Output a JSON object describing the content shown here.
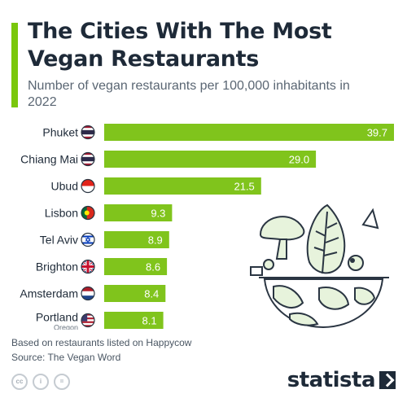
{
  "header": {
    "title": "The Cities With The Most Vegan Restaurants",
    "subtitle": "Number of vegan restaurants per 100,000 inhabitants in 2022"
  },
  "colors": {
    "accent": "#7ac70c",
    "bar": "#80c41c",
    "text": "#1e2a38",
    "illustration_fill": "#e7f3dc",
    "illustration_stroke": "#2a3542"
  },
  "chart_data": {
    "type": "bar",
    "orientation": "horizontal",
    "title": "The Cities With The Most Vegan Restaurants",
    "subtitle": "Number of vegan restaurants per 100,000 inhabitants in 2022",
    "categories": [
      "Phuket",
      "Chiang Mai",
      "Ubud",
      "Lisbon",
      "Tel Aviv",
      "Brighton",
      "Amsterdam",
      "Portland"
    ],
    "sublabels": [
      "",
      "",
      "",
      "",
      "",
      "",
      "",
      "Oregon"
    ],
    "flags": [
      "thailand-flag",
      "thailand-flag",
      "indonesia-flag",
      "portugal-flag",
      "israel-flag",
      "uk-flag",
      "netherlands-flag",
      "usa-flag"
    ],
    "values": [
      39.7,
      29.0,
      21.5,
      9.3,
      8.9,
      8.6,
      8.4,
      8.1
    ],
    "value_labels": [
      "39.7",
      "29.0",
      "21.5",
      "9.3",
      "8.9",
      "8.6",
      "8.4",
      "8.1"
    ],
    "xlim": [
      0,
      39.7
    ],
    "grid": false,
    "legend": "none"
  },
  "footer": {
    "note": "Based on restaurants listed on Happycow",
    "source": "Source: The Vegan Word",
    "license_icons": [
      "cc",
      "i",
      "="
    ],
    "brand": "statista"
  }
}
